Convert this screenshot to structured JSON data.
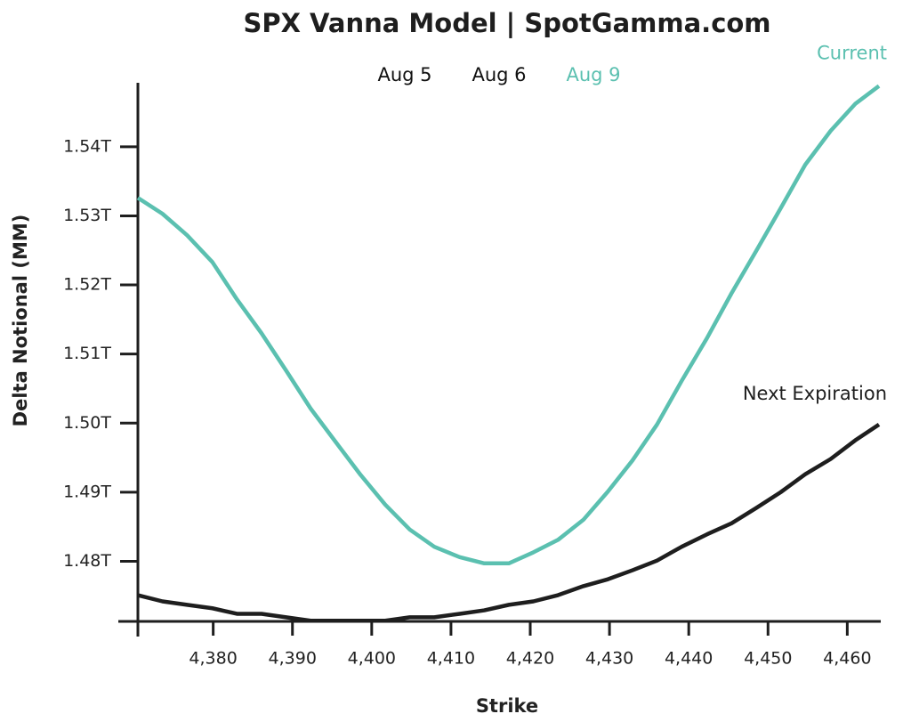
{
  "chart_data": {
    "type": "line",
    "title": "SPX Vanna Model | SpotGamma.com",
    "x_label": "Strike",
    "y_label": "Delta Notional (MM)",
    "date_buttons": [
      {
        "label": "Aug 5",
        "color": "#111111"
      },
      {
        "label": "Aug 6",
        "color": "#111111"
      },
      {
        "label": "Aug 9",
        "color": "#5bc0b0"
      }
    ],
    "x": [
      4370.5,
      4373.6,
      4376.7,
      4379.9,
      4383.0,
      4386.1,
      4389.2,
      4392.3,
      4395.5,
      4398.6,
      4401.7,
      4404.8,
      4407.9,
      4411.1,
      4414.2,
      4417.3,
      4420.4,
      4423.5,
      4426.7,
      4429.8,
      4432.9,
      4436.0,
      4439.1,
      4442.3,
      4445.4,
      4448.5,
      4451.6,
      4454.7,
      4457.9,
      4461.0,
      4464
    ],
    "series": [
      {
        "name": "Current",
        "color": "#5bc0b0",
        "values": [
          1.5326,
          1.5303,
          1.5272,
          1.5233,
          1.5179,
          1.513,
          1.5076,
          1.5021,
          1.4972,
          1.4925,
          1.4882,
          1.4846,
          1.4821,
          1.4806,
          1.4797,
          1.4797,
          1.4813,
          1.4831,
          1.486,
          1.4901,
          1.4946,
          1.4998,
          1.5061,
          1.5123,
          1.5188,
          1.5249,
          1.5311,
          1.5374,
          1.5423,
          1.5462,
          1.5488
        ]
      },
      {
        "name": "Next Expiration",
        "color": "#1e1e1e",
        "values": [
          1.4751,
          1.4742,
          1.4737,
          1.4732,
          1.4724,
          1.4724,
          1.4719,
          1.4714,
          1.4714,
          1.4714,
          1.4714,
          1.4719,
          1.4719,
          1.4724,
          1.4729,
          1.4737,
          1.4742,
          1.4751,
          1.4764,
          1.4774,
          1.4787,
          1.4801,
          1.4821,
          1.4839,
          1.4855,
          1.4877,
          1.49,
          1.4926,
          1.4948,
          1.4975,
          1.4998
        ]
      }
    ],
    "xlim": [
      4370.5,
      4464
    ],
    "xticks": [
      {
        "value": 4380,
        "label": "4,380"
      },
      {
        "value": 4390,
        "label": "4,390"
      },
      {
        "value": 4400,
        "label": "4,400"
      },
      {
        "value": 4410,
        "label": "4,410"
      },
      {
        "value": 4420,
        "label": "4,420"
      },
      {
        "value": 4430,
        "label": "4,430"
      },
      {
        "value": 4440,
        "label": "4,440"
      },
      {
        "value": 4450,
        "label": "4,450"
      },
      {
        "value": 4460,
        "label": "4,460"
      }
    ],
    "ylim": [
      1.4713,
      1.549
    ],
    "yticks": [
      {
        "value": 1.48,
        "label": "1.48T"
      },
      {
        "value": 1.49,
        "label": "1.49T"
      },
      {
        "value": 1.5,
        "label": "1.50T"
      },
      {
        "value": 1.51,
        "label": "1.51T"
      },
      {
        "value": 1.52,
        "label": "1.52T"
      },
      {
        "value": 1.53,
        "label": "1.53T"
      },
      {
        "value": 1.54,
        "label": "1.54T"
      }
    ],
    "grid": false
  }
}
